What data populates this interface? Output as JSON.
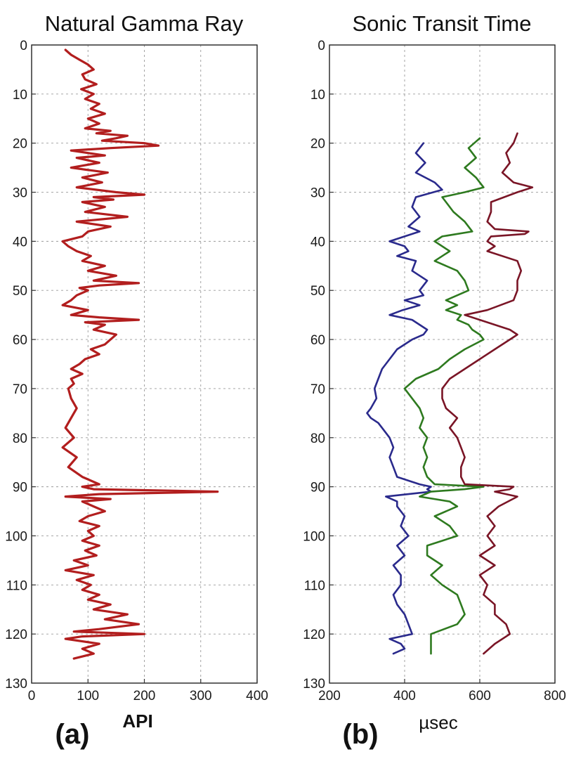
{
  "chart_data": [
    {
      "type": "line",
      "panel_label": "(a)",
      "title": "Natural Gamma Ray",
      "xlabel": "API",
      "ylabel": "",
      "xlim": [
        0,
        400
      ],
      "ylim": [
        0,
        130
      ],
      "y_inverted": true,
      "grid": true,
      "xticks": [
        "0",
        "100",
        "200",
        "300",
        "400"
      ],
      "yticks": [
        "0",
        "10",
        "20",
        "30",
        "40",
        "50",
        "60",
        "70",
        "80",
        "90",
        "100",
        "110",
        "120",
        "130"
      ],
      "series": [
        {
          "color": "#b21e1e",
          "depth": [
            1,
            2,
            3,
            4,
            5,
            6,
            7,
            8,
            9,
            10,
            11,
            12,
            13,
            14,
            15,
            16,
            17,
            17.5,
            18,
            18.5,
            19,
            19.5,
            20,
            20.5,
            21,
            21.5,
            22,
            22.5,
            23,
            24,
            25,
            26,
            27,
            28,
            29,
            30,
            30.5,
            31,
            31.5,
            32,
            33,
            34,
            35,
            36,
            37,
            38,
            39,
            40,
            41,
            42,
            43,
            44,
            45,
            46,
            47,
            48,
            48.5,
            49,
            49.5,
            50,
            51,
            52,
            53,
            54,
            55,
            55.5,
            56,
            56.5,
            57,
            58,
            59,
            60,
            61,
            62,
            63,
            64,
            65,
            66,
            67,
            68,
            69,
            70,
            72,
            74,
            76,
            78,
            80,
            82,
            84,
            86,
            88,
            89.5,
            90,
            90.5,
            91,
            91.5,
            92,
            92.5,
            93,
            94,
            95,
            96,
            97,
            98,
            99,
            100,
            101,
            102,
            103,
            104,
            105,
            106,
            107,
            108,
            109,
            110,
            111,
            112,
            113,
            114,
            115,
            116,
            117,
            118,
            119,
            119.5,
            120,
            120.5,
            121,
            122,
            123,
            124,
            125
          ],
          "api": [
            60,
            70,
            85,
            100,
            110,
            90,
            95,
            115,
            88,
            110,
            95,
            120,
            105,
            130,
            100,
            120,
            95,
            140,
            115,
            170,
            150,
            125,
            200,
            225,
            140,
            70,
            100,
            130,
            80,
            120,
            70,
            135,
            90,
            125,
            80,
            150,
            200,
            110,
            145,
            90,
            130,
            95,
            170,
            80,
            140,
            100,
            90,
            55,
            65,
            80,
            105,
            90,
            130,
            100,
            150,
            110,
            190,
            120,
            85,
            100,
            80,
            70,
            55,
            100,
            70,
            120,
            190,
            95,
            130,
            110,
            150,
            140,
            130,
            105,
            120,
            95,
            85,
            70,
            90,
            70,
            75,
            65,
            70,
            80,
            70,
            60,
            75,
            55,
            80,
            65,
            90,
            120,
            90,
            110,
            330,
            120,
            60,
            140,
            90,
            110,
            130,
            100,
            85,
            120,
            100,
            110,
            90,
            120,
            95,
            115,
            75,
            100,
            60,
            110,
            80,
            105,
            90,
            120,
            100,
            140,
            110,
            170,
            130,
            190,
            120,
            75,
            200,
            90,
            60,
            120,
            90,
            110,
            75
          ],
          "x_values": []
        }
      ]
    },
    {
      "type": "line",
      "panel_label": "(b)",
      "title": "Sonic Transit Time",
      "xlabel": "µsec",
      "ylabel": "",
      "xlim": [
        200,
        800
      ],
      "ylim": [
        0,
        130
      ],
      "y_inverted": true,
      "grid": true,
      "xticks": [
        "200",
        "400",
        "600",
        "800"
      ],
      "yticks": [
        "0",
        "10",
        "20",
        "30",
        "40",
        "50",
        "60",
        "70",
        "80",
        "90",
        "100",
        "110",
        "120",
        "130"
      ],
      "series": [
        {
          "color": "#2a2a8c",
          "depth": [
            20,
            22,
            24,
            26,
            28,
            29.5,
            31,
            33,
            35,
            37,
            38,
            39,
            40,
            41,
            42,
            43,
            44,
            46,
            48,
            50,
            51,
            52,
            53,
            54,
            55,
            56,
            57,
            58,
            59,
            60,
            62,
            64,
            66,
            68,
            70,
            72,
            74,
            75,
            76,
            77,
            78,
            80,
            82,
            84,
            86,
            88,
            89.5,
            90,
            90.5,
            91,
            92,
            93,
            94,
            96,
            98,
            100,
            102,
            104,
            106,
            108,
            110,
            112,
            114,
            116,
            118,
            120,
            121,
            122,
            123,
            124
          ],
          "usec": [
            450,
            430,
            455,
            430,
            480,
            500,
            430,
            420,
            440,
            410,
            440,
            400,
            360,
            400,
            410,
            380,
            430,
            420,
            460,
            440,
            450,
            400,
            440,
            395,
            360,
            420,
            440,
            460,
            450,
            420,
            380,
            360,
            340,
            330,
            320,
            325,
            310,
            300,
            310,
            330,
            340,
            360,
            370,
            360,
            370,
            380,
            440,
            470,
            460,
            470,
            350,
            380,
            380,
            400,
            390,
            410,
            380,
            400,
            370,
            390,
            390,
            370,
            380,
            400,
            410,
            420,
            360,
            390,
            400,
            370
          ]
        },
        {
          "color": "#2e7a1f",
          "depth": [
            19,
            21,
            23,
            25,
            27,
            29,
            30,
            31,
            32,
            34,
            36,
            38,
            39,
            40,
            42,
            44,
            46,
            48,
            50,
            52,
            53,
            54,
            55,
            56,
            57,
            58,
            59,
            60,
            62,
            64,
            66,
            68,
            70,
            72,
            74,
            76,
            78,
            80,
            82,
            84,
            86,
            88,
            89.5,
            90,
            90.5,
            91,
            92,
            93,
            94,
            96,
            98,
            100,
            102,
            104,
            106,
            108,
            110,
            112,
            114,
            116,
            118,
            120,
            122,
            124
          ],
          "usec": [
            600,
            570,
            590,
            560,
            590,
            610,
            560,
            500,
            510,
            530,
            560,
            580,
            500,
            480,
            520,
            480,
            540,
            560,
            570,
            510,
            540,
            510,
            550,
            540,
            570,
            580,
            600,
            610,
            560,
            520,
            490,
            430,
            400,
            420,
            440,
            450,
            440,
            460,
            450,
            460,
            450,
            460,
            480,
            610,
            560,
            470,
            440,
            520,
            540,
            480,
            520,
            540,
            460,
            460,
            500,
            470,
            500,
            540,
            550,
            560,
            540,
            470,
            470,
            470
          ]
        },
        {
          "color": "#7a1526",
          "depth": [
            18,
            20,
            22,
            24,
            26,
            28,
            29,
            30,
            32,
            34,
            36,
            37.5,
            38,
            38.5,
            39,
            40,
            41,
            42,
            44,
            46,
            48,
            50,
            52,
            54,
            55,
            56,
            57,
            58,
            59,
            60,
            62,
            64,
            66,
            68,
            70,
            72,
            74,
            76,
            78,
            80,
            82,
            84,
            86,
            88,
            89.5,
            90,
            90.5,
            91,
            92,
            94,
            96,
            98,
            100,
            102,
            104,
            106,
            108,
            110,
            112,
            114,
            116,
            118,
            120,
            122,
            124
          ],
          "usec": [
            700,
            690,
            670,
            680,
            660,
            690,
            740,
            700,
            630,
            630,
            620,
            640,
            730,
            720,
            630,
            620,
            640,
            620,
            700,
            710,
            700,
            700,
            690,
            620,
            560,
            600,
            640,
            680,
            700,
            680,
            640,
            600,
            560,
            520,
            500,
            500,
            510,
            540,
            520,
            540,
            550,
            560,
            550,
            550,
            560,
            690,
            680,
            640,
            700,
            650,
            620,
            640,
            620,
            640,
            600,
            640,
            600,
            620,
            610,
            640,
            640,
            670,
            680,
            640,
            610
          ]
        }
      ]
    }
  ]
}
